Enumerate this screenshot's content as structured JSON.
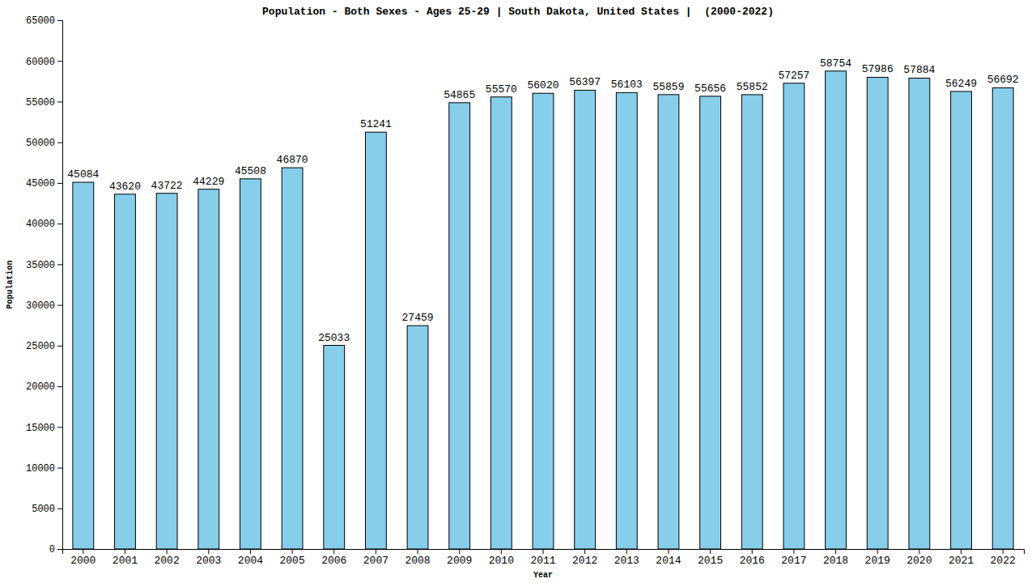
{
  "chart_data": {
    "type": "bar",
    "title": "Population - Both Sexes - Ages 25-29 | South Dakota, United States |  (2000-2022)",
    "x_label": "Year",
    "y_label": "Population",
    "categories": [
      "2000",
      "2001",
      "2002",
      "2003",
      "2004",
      "2005",
      "2006",
      "2007",
      "2008",
      "2009",
      "2010",
      "2011",
      "2012",
      "2013",
      "2014",
      "2015",
      "2016",
      "2017",
      "2018",
      "2019",
      "2020",
      "2021",
      "2022"
    ],
    "values": [
      45084,
      43620,
      43722,
      44229,
      45508,
      46870,
      25033,
      51241,
      27459,
      54865,
      55570,
      56020,
      56397,
      56103,
      55859,
      55656,
      55852,
      57257,
      58754,
      57986,
      57884,
      56249,
      56692
    ],
    "color": "#87ceeb",
    "ylim": [
      0,
      65000
    ],
    "yticks": [
      0,
      5000,
      10000,
      15000,
      20000,
      25000,
      30000,
      35000,
      40000,
      45000,
      50000,
      55000,
      60000,
      65000
    ],
    "grid": false,
    "data_labels": true
  }
}
